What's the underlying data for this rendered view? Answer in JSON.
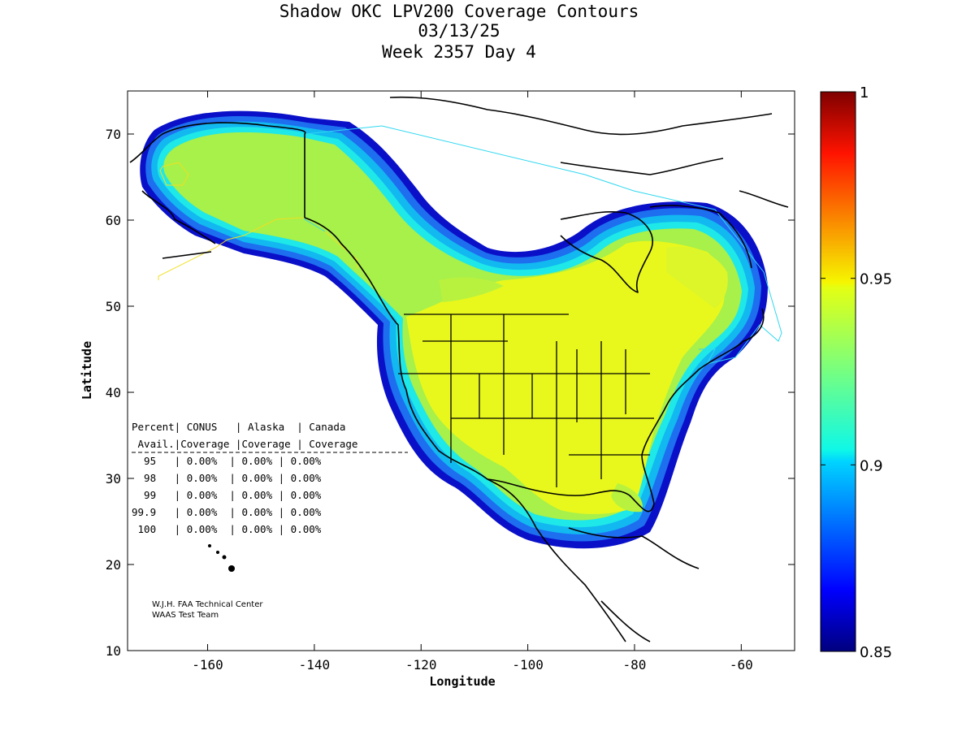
{
  "title": {
    "line1": "Shadow OKC LPV200 Coverage Contours",
    "line2": "03/13/25",
    "line3": "Week 2357 Day 4"
  },
  "axes": {
    "xlabel": "Longitude",
    "ylabel": "Latitude",
    "x_range": [
      -175,
      -50
    ],
    "y_range": [
      10,
      75
    ],
    "x_ticks": [
      "-160",
      "-140",
      "-120",
      "-100",
      "-80",
      "-60"
    ],
    "y_ticks": [
      "10",
      "20",
      "30",
      "40",
      "50",
      "60",
      "70"
    ]
  },
  "colorbar": {
    "min": 0.85,
    "max": 1,
    "ticks": [
      "0.85",
      "0.9",
      "0.95",
      "1"
    ],
    "colormap": "jet"
  },
  "colors": {
    "coverage_high": "#e8f81c",
    "coverage_mid": "#a6f04a",
    "coverage_low": "#1ee8f0",
    "coverage_edge": "#0a10c8",
    "alaska_boundary": "#f0e020",
    "canada_boundary": "#30d8f0"
  },
  "table": {
    "header1": "Percent| CONUS   | Alaska  | Canada",
    "header2": " Avail.|Coverage |Coverage | Coverage",
    "rows": [
      "  95   | 0.00%  | 0.00% | 0.00%",
      "  98   | 0.00%  | 0.00% | 0.00%",
      "  99   | 0.00%  | 0.00% | 0.00%",
      "99.9   | 0.00%  | 0.00% | 0.00%",
      " 100   | 0.00%  | 0.00% | 0.00%"
    ]
  },
  "credit": {
    "line1": "W.J.H. FAA Technical Center",
    "line2": "WAAS Test Team"
  }
}
